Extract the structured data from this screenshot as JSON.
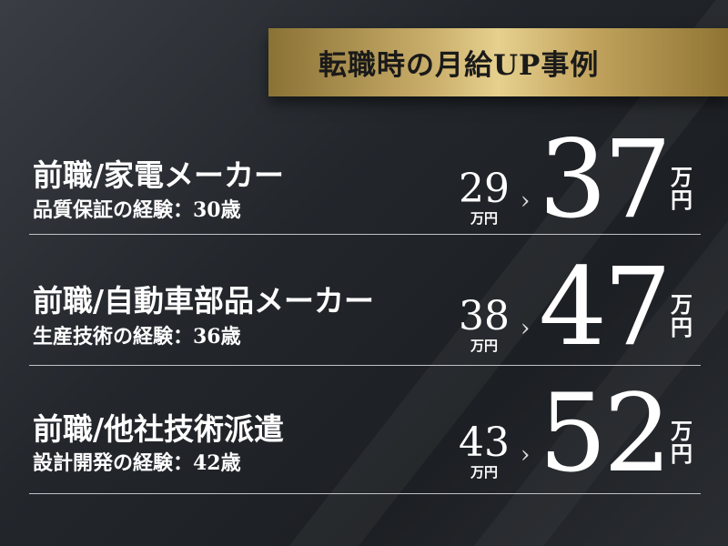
{
  "heading": "転職時の月給UP事例",
  "cases": [
    {
      "title": "前職/家電メーカー",
      "subtitle": "品質保証の経験：30歳",
      "before": "29",
      "before_unit": "万円",
      "after": "37",
      "after_unit_1": "万",
      "after_unit_2": "円"
    },
    {
      "title": "前職/自動車部品メーカー",
      "subtitle": "生産技術の経験：36歳",
      "before": "38",
      "before_unit": "万円",
      "after": "47",
      "after_unit_1": "万",
      "after_unit_2": "円"
    },
    {
      "title": "前職/他社技術派遣",
      "subtitle": "設計開発の経験：42歳",
      "before": "43",
      "before_unit": "万円",
      "after": "52",
      "after_unit_1": "万",
      "after_unit_2": "円"
    }
  ],
  "arrow_icon": "chevron-right-icon",
  "colors": {
    "gold": "#c9ad6a",
    "background": "#23272c"
  }
}
